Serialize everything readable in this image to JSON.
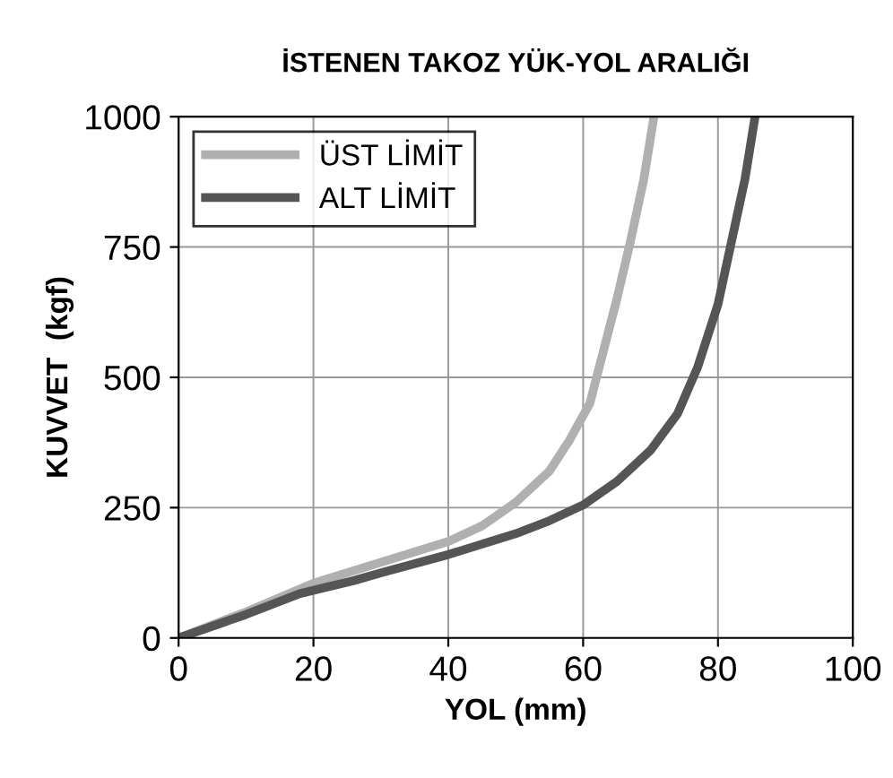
{
  "chart_data": {
    "type": "line",
    "title": "İSTENEN TAKOZ YÜK-YOL ARALIĞI",
    "xlabel": "YOL (mm)",
    "ylabel": "KUVVET  (kgf)",
    "series": [
      {
        "name": "ÜST LİMİT",
        "color": "#b0b0b0",
        "x": [
          0,
          10,
          20,
          30,
          40,
          45,
          50,
          55,
          58,
          61,
          63,
          65,
          67,
          69,
          70.5
        ],
        "values": [
          0,
          50,
          105,
          145,
          185,
          215,
          260,
          320,
          380,
          450,
          550,
          650,
          760,
          880,
          1000
        ]
      },
      {
        "name": "ALT LİMİT",
        "color": "#555555",
        "x": [
          0,
          10,
          18,
          26,
          30,
          40,
          50,
          55,
          60,
          65,
          70,
          74,
          77,
          80,
          82,
          84,
          85.5
        ],
        "values": [
          0,
          45,
          85,
          110,
          125,
          160,
          200,
          225,
          255,
          300,
          360,
          430,
          520,
          640,
          760,
          880,
          1000
        ]
      }
    ],
    "xlim": [
      0,
      100
    ],
    "ylim": [
      0,
      1000
    ],
    "xticks": [
      0,
      20,
      40,
      60,
      80,
      100
    ],
    "yticks": [
      0,
      250,
      500,
      750,
      1000
    ],
    "grid": true,
    "legend": "top left",
    "marker": "none",
    "line_style": "solid"
  }
}
